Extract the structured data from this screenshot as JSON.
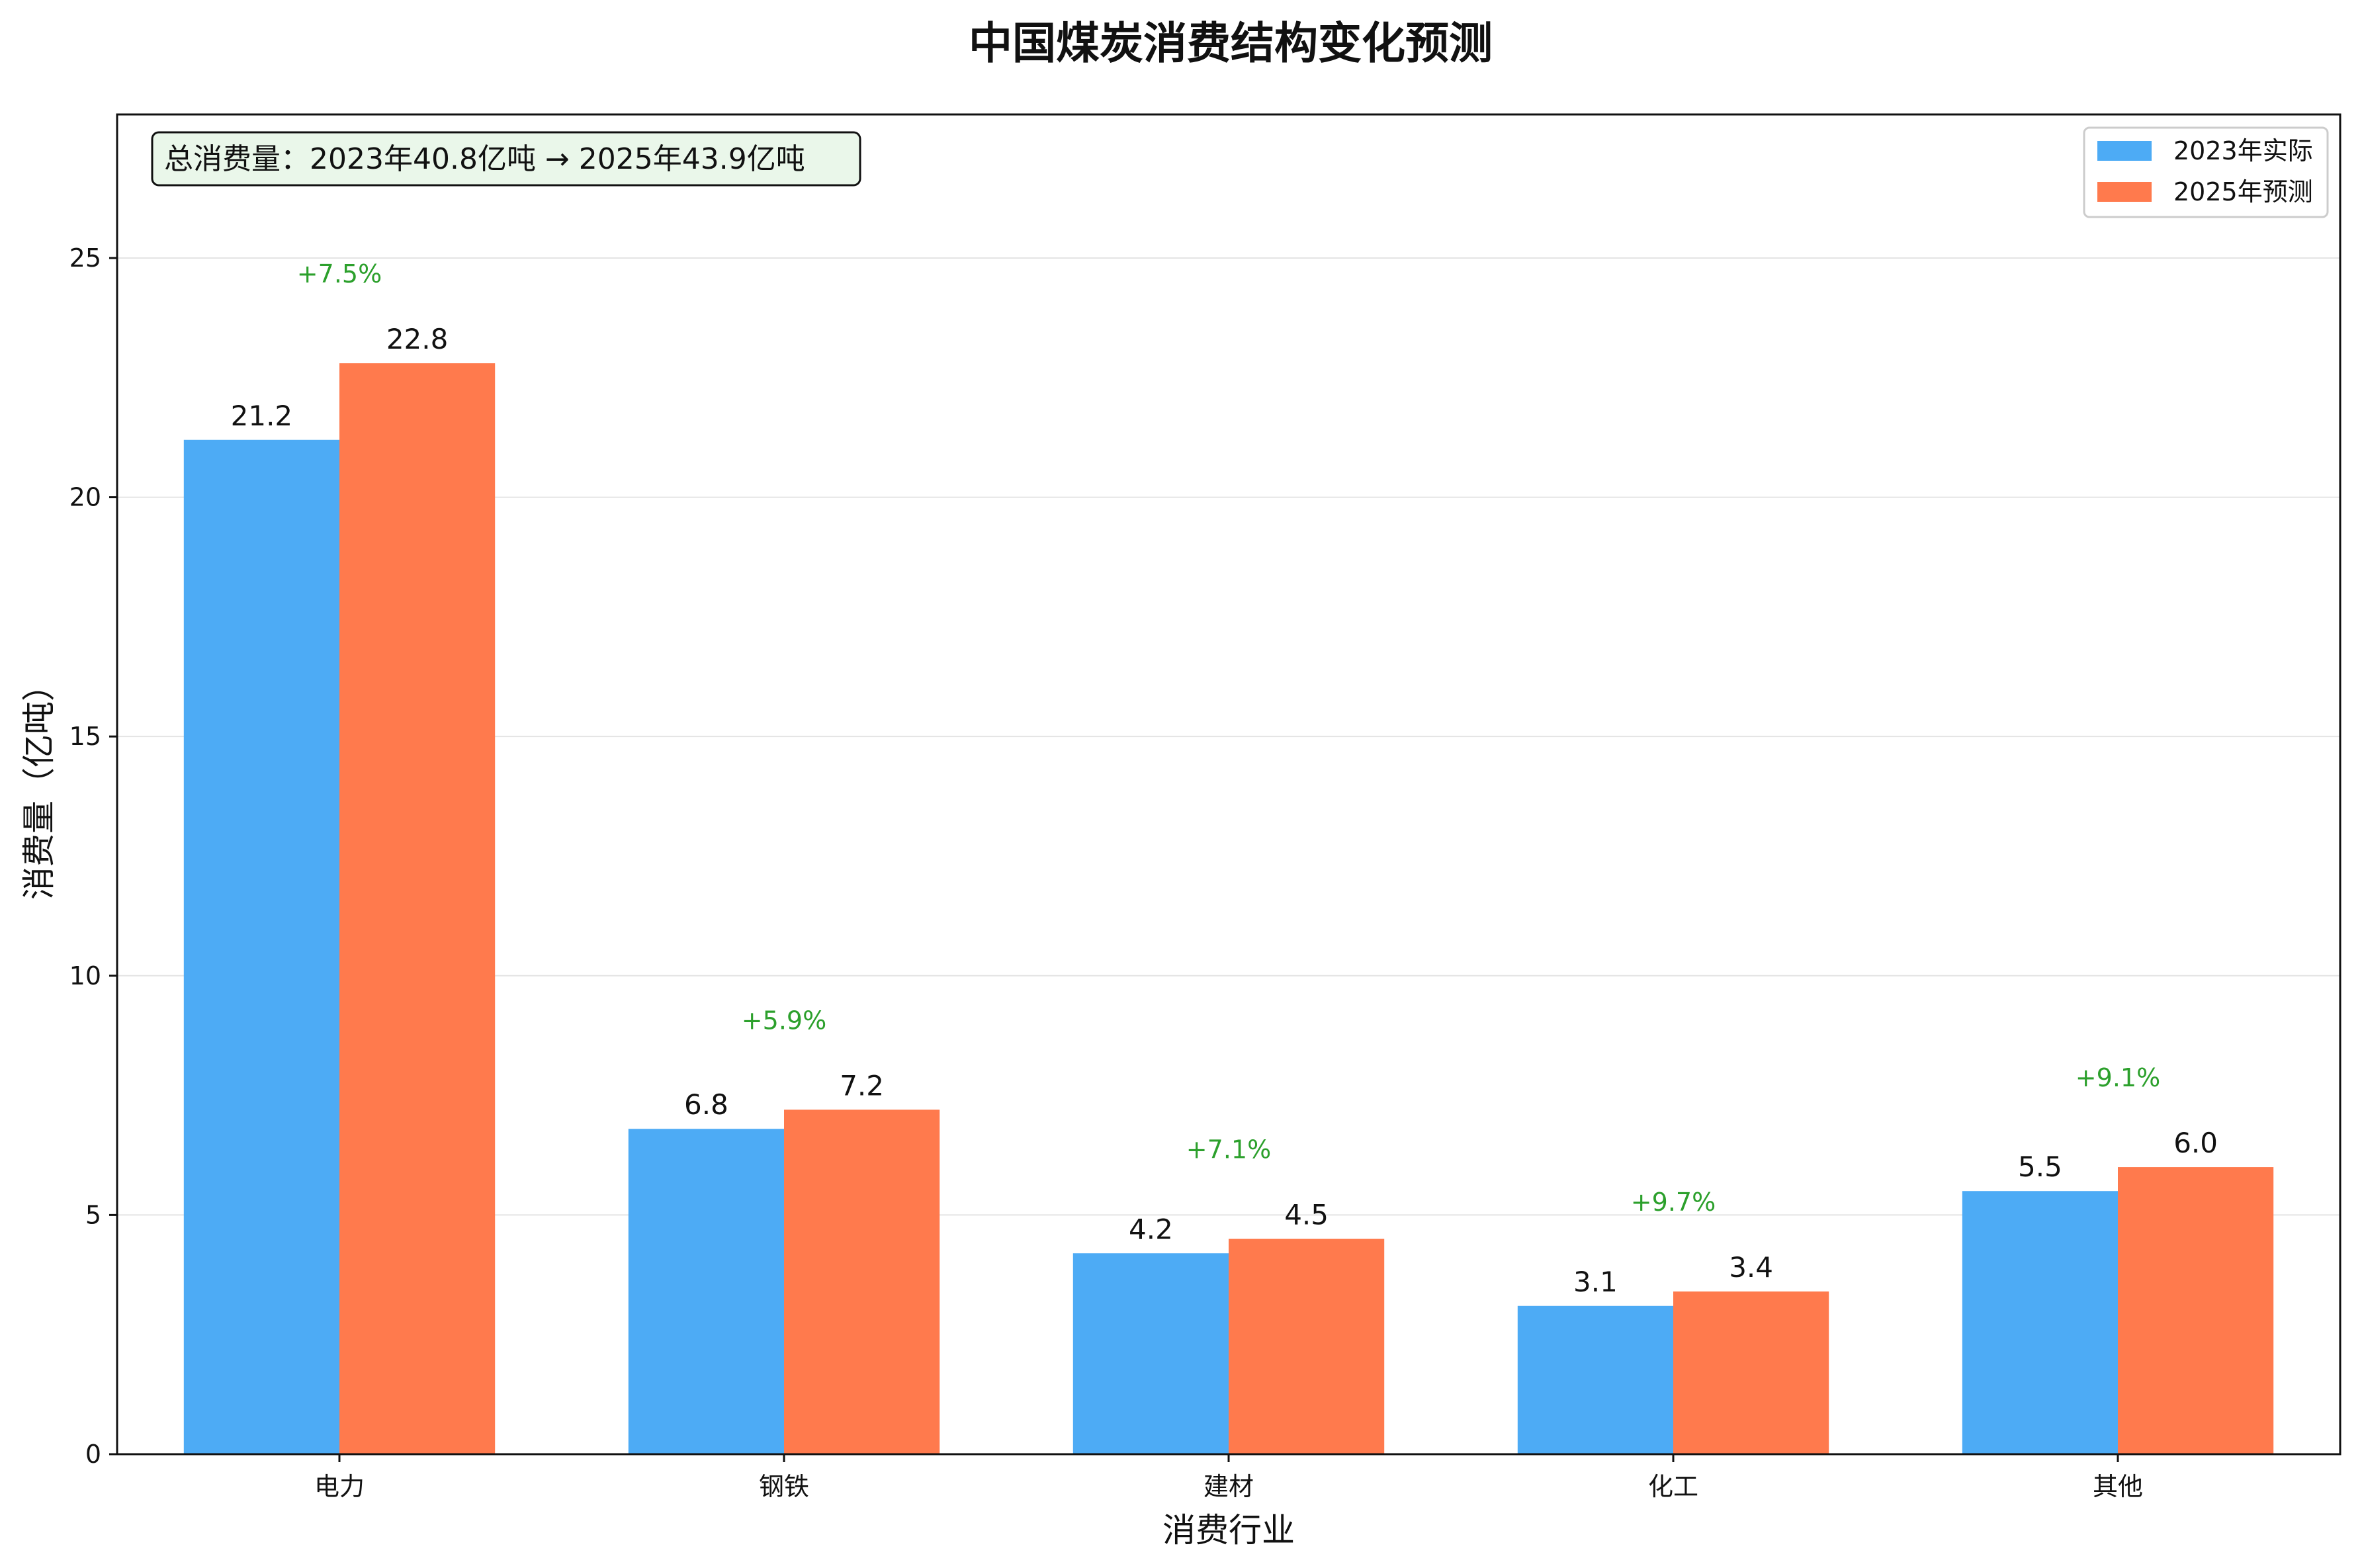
{
  "chart_data": {
    "type": "bar",
    "title": "中国煤炭消费结构变化预测",
    "xlabel": "消费行业",
    "ylabel": "消费量（亿吨）",
    "ylim": [
      0,
      28
    ],
    "yticks": [
      0,
      5,
      10,
      15,
      20,
      25
    ],
    "categories": [
      "电力",
      "钢铁",
      "建材",
      "化工",
      "其他"
    ],
    "series": [
      {
        "name": "2023年实际",
        "color": "#4DABF5",
        "values": [
          21.2,
          6.8,
          4.2,
          3.1,
          5.5
        ]
      },
      {
        "name": "2025年预测",
        "color": "#FF7A4D",
        "values": [
          22.8,
          7.2,
          4.5,
          3.4,
          6.0
        ]
      }
    ],
    "value_labels": [
      [
        "21.2",
        "6.8",
        "4.2",
        "3.1",
        "5.5"
      ],
      [
        "22.8",
        "7.2",
        "4.5",
        "3.4",
        "6.0"
      ]
    ],
    "growth_labels": [
      "+7.5%",
      "+5.9%",
      "+7.1%",
      "+9.7%",
      "+9.1%"
    ],
    "growth_color": "#2ca02c",
    "annotation": "总消费量：2023年40.8亿吨 → 2025年43.9亿吨",
    "annotation_bg": "#EAF7EA",
    "grid": true,
    "legend_position": "top-right"
  }
}
